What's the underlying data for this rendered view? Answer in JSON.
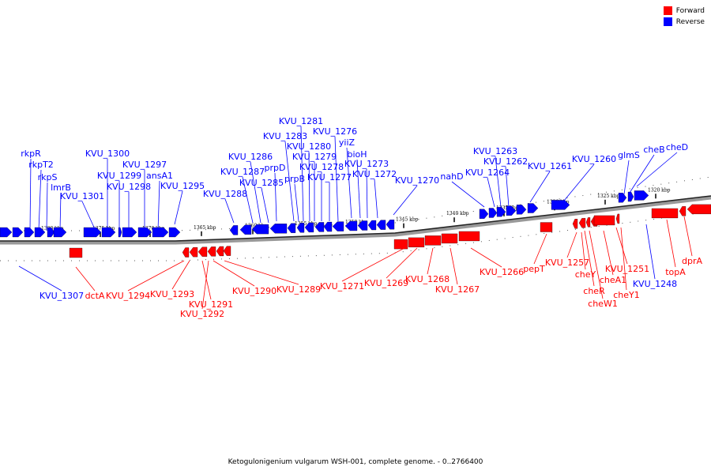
{
  "caption": "Ketogulonigenium vulgarum WSH-001, complete genome. - 0..2766400",
  "legend": [
    {
      "label": "Forward",
      "color": "#ff0000"
    },
    {
      "label": "Reverse",
      "color": "#0000ff"
    }
  ],
  "colors": {
    "forward": "#ff0000",
    "reverse": "#0000ff",
    "backbone": "#808080"
  },
  "scale_ticks": [
    "1380 kbp",
    "1375 kbp",
    "1370 kbp",
    "1365 kbp",
    "1360 kbp",
    "1355 kbp",
    "1350 kbp",
    "1345 kbp",
    "1340 kbp",
    "1335 kbp",
    "1330 kbp",
    "1325 kbp",
    "1320 kbp"
  ],
  "genes_reverse": [
    {
      "name": "rkpR"
    },
    {
      "name": "rkpT2"
    },
    {
      "name": "rkpS"
    },
    {
      "name": "lmrB"
    },
    {
      "name": "KVU_1301"
    },
    {
      "name": "KVU_1300"
    },
    {
      "name": "KVU_1299"
    },
    {
      "name": "KVU_1298"
    },
    {
      "name": "KVU_1297"
    },
    {
      "name": "ansA1"
    },
    {
      "name": "KVU_1295"
    },
    {
      "name": "KVU_1288"
    },
    {
      "name": "KVU_1287"
    },
    {
      "name": "KVU_1286"
    },
    {
      "name": "KVU_1285"
    },
    {
      "name": "prpD"
    },
    {
      "name": "KVU_1283"
    },
    {
      "name": "prpB"
    },
    {
      "name": "KVU_1281"
    },
    {
      "name": "KVU_1280"
    },
    {
      "name": "KVU_1279"
    },
    {
      "name": "KVU_1278"
    },
    {
      "name": "KVU_1277"
    },
    {
      "name": "KVU_1276"
    },
    {
      "name": "yiiZ"
    },
    {
      "name": "bioH"
    },
    {
      "name": "KVU_1273"
    },
    {
      "name": "KVU_1272"
    },
    {
      "name": "KVU_1270"
    },
    {
      "name": "nahD"
    },
    {
      "name": "KVU_1264"
    },
    {
      "name": "KVU_1263"
    },
    {
      "name": "KVU_1262"
    },
    {
      "name": "KVU_1261"
    },
    {
      "name": "KVU_1260"
    },
    {
      "name": "glmS"
    },
    {
      "name": "cheB"
    },
    {
      "name": "cheD"
    },
    {
      "name": "KVU_1307"
    },
    {
      "name": "KVU_1248"
    }
  ],
  "genes_forward": [
    {
      "name": "dctA"
    },
    {
      "name": "KVU_1294"
    },
    {
      "name": "KVU_1293"
    },
    {
      "name": "KVU_1291"
    },
    {
      "name": "KVU_1292"
    },
    {
      "name": "KVU_1290"
    },
    {
      "name": "KVU_1289"
    },
    {
      "name": "KVU_1271"
    },
    {
      "name": "KVU_1269"
    },
    {
      "name": "KVU_1268"
    },
    {
      "name": "KVU_1267"
    },
    {
      "name": "KVU_1266"
    },
    {
      "name": "pepT"
    },
    {
      "name": "KVU_1257"
    },
    {
      "name": "cheY"
    },
    {
      "name": "cheR"
    },
    {
      "name": "cheW1"
    },
    {
      "name": "cheA1"
    },
    {
      "name": "KVU_1251"
    },
    {
      "name": "cheY1"
    },
    {
      "name": "topA"
    },
    {
      "name": "dprA"
    }
  ]
}
